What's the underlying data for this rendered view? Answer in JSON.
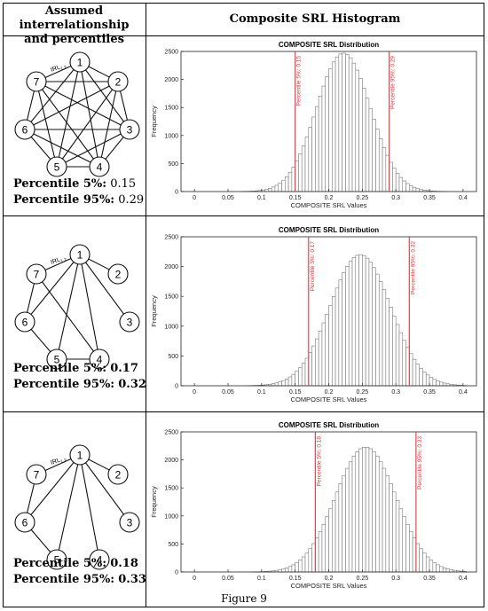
{
  "header": {
    "left_line1": "Assumed interrelationship",
    "left_line2": "and percentiles",
    "right": "Composite SRL Histogram"
  },
  "rows": [
    {
      "p5_label": "Percentile 5%:",
      "p5_value": "0.15",
      "p95_label": "Percentile 95%:",
      "p95_value": "0.29",
      "value_bold": false,
      "network": {
        "nodes": [
          "1",
          "2",
          "3",
          "4",
          "5",
          "6",
          "7"
        ],
        "edge_label": "IRL",
        "edge_label_sub": "1,2",
        "edges": [
          [
            1,
            2
          ],
          [
            1,
            3
          ],
          [
            1,
            4
          ],
          [
            1,
            5
          ],
          [
            1,
            6
          ],
          [
            1,
            7
          ],
          [
            2,
            3
          ],
          [
            2,
            4
          ],
          [
            2,
            5
          ],
          [
            2,
            6
          ],
          [
            2,
            7
          ],
          [
            3,
            4
          ],
          [
            3,
            5
          ],
          [
            3,
            6
          ],
          [
            3,
            7
          ],
          [
            4,
            5
          ],
          [
            4,
            6
          ],
          [
            4,
            7
          ],
          [
            5,
            6
          ],
          [
            5,
            7
          ],
          [
            6,
            7
          ]
        ]
      }
    },
    {
      "p5_label": "Percentile 5%:",
      "p5_value": "0.17",
      "p95_label": "Percentile 95%:",
      "p95_value": "0.32",
      "value_bold": true,
      "network": {
        "nodes": [
          "1",
          "2",
          "3",
          "4",
          "5",
          "6",
          "7"
        ],
        "edge_label": "IRL",
        "edge_label_sub": "1,2",
        "edges": [
          [
            1,
            2
          ],
          [
            1,
            3
          ],
          [
            1,
            4
          ],
          [
            1,
            5
          ],
          [
            1,
            6
          ],
          [
            1,
            7
          ],
          [
            7,
            4
          ],
          [
            7,
            6
          ],
          [
            6,
            5
          ],
          [
            5,
            4
          ]
        ]
      }
    },
    {
      "p5_label": "Percentile 5%:",
      "p5_value": "0.18",
      "p95_label": "Percentile 95%:",
      "p95_value": "0.33",
      "value_bold": true,
      "network": {
        "nodes": [
          "1",
          "2",
          "3",
          "4",
          "5",
          "6",
          "7"
        ],
        "edge_label": "IRL",
        "edge_label_sub": "1,2",
        "edges": [
          [
            1,
            2
          ],
          [
            1,
            3
          ],
          [
            1,
            4
          ],
          [
            1,
            5
          ],
          [
            1,
            6
          ],
          [
            1,
            7
          ],
          [
            7,
            6
          ],
          [
            6,
            5
          ]
        ]
      }
    }
  ],
  "caption": "Figure 9",
  "chart_data": [
    {
      "type": "bar",
      "title": "COMPOSITE SRL Distribution",
      "xlabel": "COMPOSITE SRL Values",
      "ylabel": "Frequency",
      "xlim": [
        -0.02,
        0.42
      ],
      "ylim": [
        0,
        2500
      ],
      "xticks": [
        "0",
        "0.05",
        "0.1",
        "0.15",
        "0.2",
        "0.25",
        "0.3",
        "0.35",
        "0.4"
      ],
      "yticks": [
        "0",
        "500",
        "1000",
        "1500",
        "2000",
        "2500"
      ],
      "bin_width": 0.005,
      "mean": 0.222,
      "peak": 2470,
      "sigma": 0.04,
      "percentile_lines": [
        {
          "value": 0.15,
          "label": "Percentile 5%: 0.15"
        },
        {
          "value": 0.29,
          "label": "Percentile 95%: 0.29"
        }
      ],
      "grid": false,
      "bar_color": "#ffffff",
      "edge_color": "#7a7a7a",
      "line_color": "#e8353b"
    },
    {
      "type": "bar",
      "title": "COMPOSITE SRL Distribution",
      "xlabel": "COMPOSITE SRL Values",
      "ylabel": "Frequency",
      "xlim": [
        -0.02,
        0.42
      ],
      "ylim": [
        0,
        2500
      ],
      "xticks": [
        "0",
        "0.05",
        "0.1",
        "0.15",
        "0.2",
        "0.25",
        "0.3",
        "0.35",
        "0.4"
      ],
      "yticks": [
        "0",
        "500",
        "1000",
        "1500",
        "2000",
        "2500"
      ],
      "bin_width": 0.005,
      "mean": 0.247,
      "peak": 2200,
      "sigma": 0.045,
      "percentile_lines": [
        {
          "value": 0.17,
          "label": "Percentile 5%: 0.17"
        },
        {
          "value": 0.32,
          "label": "Percentile 95%: 0.32"
        }
      ],
      "grid": false,
      "bar_color": "#ffffff",
      "edge_color": "#7a7a7a",
      "line_color": "#e8353b"
    },
    {
      "type": "bar",
      "title": "COMPOSITE SRL Distribution",
      "xlabel": "COMPOSITE SRL Values",
      "ylabel": "Frequency",
      "xlim": [
        -0.02,
        0.42
      ],
      "ylim": [
        0,
        2500
      ],
      "xticks": [
        "0",
        "0.05",
        "0.1",
        "0.15",
        "0.2",
        "0.25",
        "0.3",
        "0.35",
        "0.4"
      ],
      "yticks": [
        "0",
        "500",
        "1000",
        "1500",
        "2000",
        "2500"
      ],
      "bin_width": 0.005,
      "mean": 0.255,
      "peak": 2230,
      "sigma": 0.045,
      "percentile_lines": [
        {
          "value": 0.18,
          "label": "Percentile 5%: 0.18"
        },
        {
          "value": 0.33,
          "label": "Percentile 95%: 0.33"
        }
      ],
      "grid": false,
      "bar_color": "#ffffff",
      "edge_color": "#7a7a7a",
      "line_color": "#e8353b"
    }
  ]
}
